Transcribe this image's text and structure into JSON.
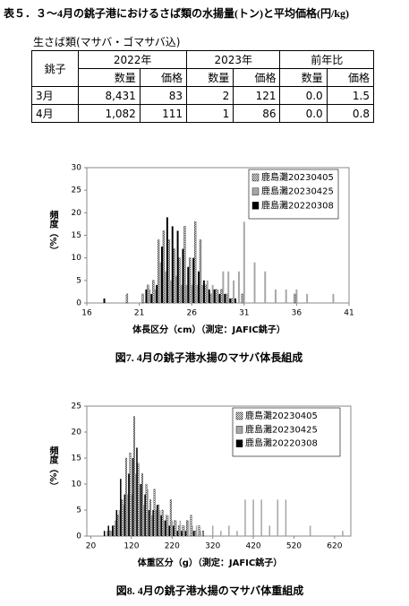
{
  "title": "表５．３～4月の銚子港におけるさば類の水揚量(トン)と平均価格(円/kg)",
  "table": {
    "caption": "生さば類(マサバ・ゴマサバ込)",
    "header": [
      "銚子",
      "2022年",
      "2023年",
      "前年比"
    ],
    "subheader": [
      "数量",
      "価格",
      "数量",
      "価格",
      "数量",
      "価格"
    ],
    "rows": [
      [
        "3月",
        "8,431",
        "83",
        "2",
        "121",
        "0.0",
        "1.5"
      ],
      [
        "4月",
        "1,082",
        "111",
        "1",
        "86",
        "0.0",
        "0.8"
      ]
    ]
  },
  "chart_data": [
    {
      "type": "bar",
      "ylabel": "頻度（%）",
      "xlabel": "体長区分（cm）（測定：JAFIC銚子）",
      "caption": "図7. 4月の銚子港水揚のマサバ体長組成",
      "x": [
        17.5,
        18,
        18.5,
        19,
        19.5,
        20,
        20.5,
        21,
        21.5,
        22,
        22.5,
        23,
        23.5,
        24,
        24.5,
        25,
        25.5,
        26,
        26.5,
        27,
        27.5,
        28,
        28.5,
        29,
        29.5,
        30,
        30.5,
        31,
        31.5,
        32,
        32.5,
        33,
        33.5,
        34,
        34.5,
        35,
        35.5,
        36,
        36.5,
        37,
        37.5,
        38,
        38.5,
        39,
        39.5,
        40
      ],
      "xlim": [
        16,
        41
      ],
      "xticks": [
        16,
        21,
        26,
        31,
        36,
        41
      ],
      "ylim": [
        0,
        30
      ],
      "yticks": [
        0,
        5,
        10,
        15,
        20,
        25,
        30
      ],
      "legend": "upper right",
      "series": [
        {
          "name": "鹿島灘20230405",
          "color": "#ffffff",
          "pattern": "checkered",
          "values": [
            0,
            0,
            0,
            0,
            0,
            2,
            0,
            0,
            2,
            4,
            5,
            14,
            16,
            14,
            12,
            10,
            17,
            10,
            18,
            14,
            4,
            2,
            3,
            3,
            2,
            1,
            0,
            2,
            0,
            0,
            0,
            0,
            0,
            0,
            0,
            0,
            0,
            2,
            0,
            0,
            0,
            0,
            0,
            0,
            0,
            0
          ]
        },
        {
          "name": "鹿島灘20230425",
          "color": "#a6a6a6",
          "values": [
            0,
            0,
            0,
            0,
            0,
            0,
            0,
            0,
            0,
            3,
            3,
            9,
            7,
            5,
            6,
            4,
            4,
            4,
            4,
            4,
            5,
            4,
            3,
            7,
            7,
            5,
            7,
            18,
            0,
            9,
            0,
            7,
            0,
            3,
            0,
            3,
            0,
            3,
            0,
            2,
            0,
            0,
            0,
            0,
            2,
            0
          ]
        },
        {
          "name": "鹿島灘20220308",
          "color": "#000000",
          "values": [
            1,
            0,
            0,
            0,
            0,
            0,
            0,
            0,
            3,
            2,
            4,
            12.5,
            19,
            17,
            16,
            12,
            8,
            10,
            7,
            5,
            3,
            3,
            2,
            2,
            1,
            1,
            0,
            0,
            0,
            0,
            0,
            0,
            0,
            0,
            0,
            0,
            0,
            0,
            0,
            0,
            0,
            0,
            0,
            0,
            0,
            0
          ]
        }
      ]
    },
    {
      "type": "bar",
      "ylabel": "頻度（%）",
      "xlabel": "体重区分（g）（測定：JAFIC銚子）",
      "caption": "図8. 4月の銚子港水揚のマサバ体重組成",
      "x": [
        50,
        60,
        70,
        80,
        90,
        100,
        110,
        120,
        130,
        140,
        150,
        160,
        170,
        180,
        190,
        200,
        210,
        220,
        230,
        240,
        250,
        260,
        270,
        280,
        290,
        300,
        320,
        340,
        360,
        380,
        400,
        420,
        440,
        460,
        480,
        500,
        560,
        640
      ],
      "xlim": [
        10,
        660
      ],
      "xticks": [
        20,
        120,
        220,
        320,
        420,
        520,
        620
      ],
      "ylim": [
        0,
        25
      ],
      "yticks": [
        0,
        5,
        10,
        15,
        20,
        25
      ],
      "legend": "upper right",
      "series": [
        {
          "name": "鹿島灘20230405",
          "color": "#ffffff",
          "pattern": "checkered",
          "values": [
            0,
            0,
            1,
            2,
            4,
            7,
            15,
            16,
            23,
            14,
            12,
            10,
            7,
            9,
            6,
            5,
            4,
            7,
            3,
            2,
            2,
            3,
            4,
            1,
            2,
            1,
            0,
            0,
            0,
            0,
            0,
            0,
            0,
            0,
            0,
            0,
            0,
            0
          ]
        },
        {
          "name": "鹿島灘20230425",
          "color": "#a6a6a6",
          "values": [
            0,
            1,
            1,
            3,
            5,
            6,
            8,
            8,
            12,
            10,
            6,
            9,
            4,
            5,
            5,
            3,
            4,
            3,
            3,
            3,
            2,
            3,
            2,
            2,
            1,
            0,
            2,
            1,
            2,
            1,
            7,
            7,
            7,
            2,
            7,
            7,
            2,
            1
          ]
        },
        {
          "name": "鹿島灘20220308",
          "color": "#000000",
          "values": [
            1,
            2,
            2,
            5,
            11,
            8,
            12,
            15,
            17,
            10,
            8,
            5,
            5,
            6,
            4,
            3,
            2,
            2,
            1,
            1,
            1,
            0,
            1,
            0,
            0,
            0,
            0,
            0,
            0,
            0,
            0,
            0,
            0,
            0,
            0,
            0,
            0,
            0
          ]
        }
      ]
    }
  ]
}
